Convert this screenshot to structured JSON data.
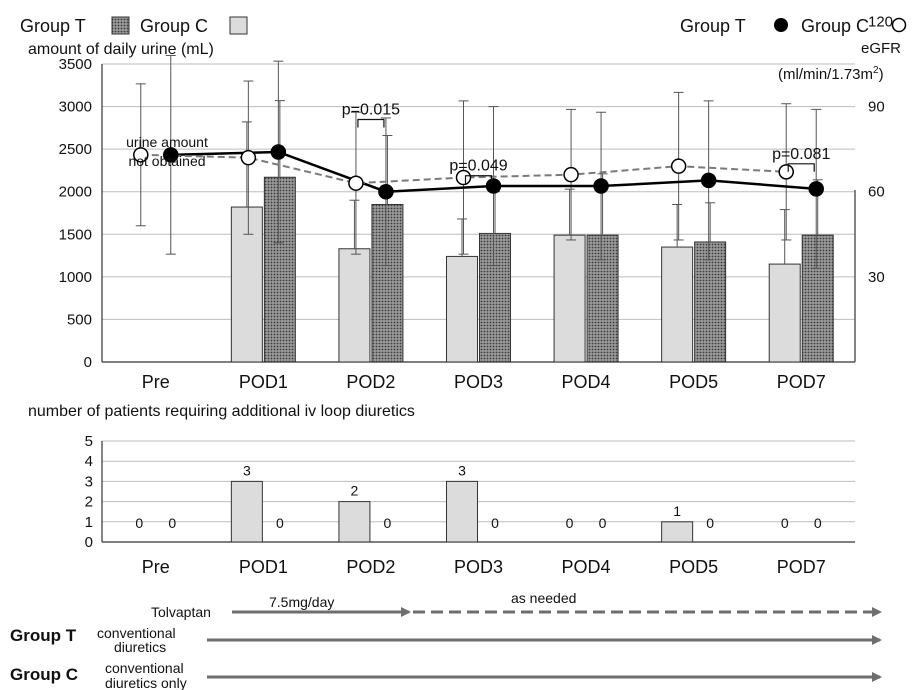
{
  "legend_bars": {
    "group_t": "Group  T",
    "group_c": "Group C"
  },
  "legend_points": {
    "group_t": "Group  T",
    "group_c": "Group C"
  },
  "chart_data": [
    {
      "type": "bar",
      "ylabel": "amount of daily urine (mL)",
      "ylim": [
        0,
        3500
      ],
      "yticks": [
        "0",
        "500",
        "1000",
        "1500",
        "2000",
        "2500",
        "3000",
        "3500"
      ],
      "categories": [
        "Pre",
        "POD1",
        "POD2",
        "POD3",
        "POD4",
        "POD5",
        "POD7"
      ],
      "series": [
        {
          "name": "Group C",
          "values": [
            null,
            1820,
            1330,
            1240,
            1490,
            1350,
            1150
          ],
          "error": [
            null,
            1000,
            570,
            440,
            540,
            500,
            640
          ]
        },
        {
          "name": "Group T",
          "values": [
            null,
            2170,
            1850,
            1510,
            1490,
            1410,
            1490
          ],
          "error": [
            null,
            900,
            810,
            490,
            720,
            460,
            650
          ]
        }
      ],
      "note_lines": [
        "urine amount",
        "not obtained"
      ],
      "pvalues": [
        {
          "category": "POD2",
          "label": "p=0.015"
        },
        {
          "category": "POD3",
          "label": "p=0.049"
        },
        {
          "category": "POD7",
          "label": "p=0.081"
        }
      ],
      "grid": "horizontal"
    },
    {
      "type": "line",
      "ylabel_lines": [
        "eGFR",
        "(ml/min/1.73m",
        "2",
        ")"
      ],
      "ylim": [
        0,
        105
      ],
      "yticks": [
        "30",
        "60",
        "90",
        "120"
      ],
      "categories": [
        "Pre",
        "POD1",
        "POD2",
        "POD3",
        "POD4",
        "POD5",
        "POD7"
      ],
      "series": [
        {
          "name": "Group T",
          "values": [
            73,
            74,
            60,
            62,
            62,
            64,
            61
          ],
          "error": [
            35,
            32,
            26,
            28,
            26,
            28,
            28
          ]
        },
        {
          "name": "Group C",
          "values": [
            73,
            72,
            63,
            65,
            66,
            69,
            67
          ],
          "error": [
            25,
            27,
            25,
            27,
            23,
            26,
            24
          ]
        }
      ]
    },
    {
      "type": "bar",
      "title": "number of patients requiring additional iv loop diuretics",
      "ylim": [
        0,
        5
      ],
      "yticks": [
        "0",
        "1",
        "2",
        "3",
        "4",
        "5"
      ],
      "categories": [
        "Pre",
        "POD1",
        "POD2",
        "POD3",
        "POD4",
        "POD5",
        "POD7"
      ],
      "series": [
        {
          "name": "Group C",
          "values": [
            0,
            3,
            2,
            3,
            0,
            1,
            0
          ]
        },
        {
          "name": "Group T",
          "values": [
            0,
            0,
            0,
            0,
            0,
            0,
            0
          ]
        }
      ],
      "grid": "horizontal"
    }
  ],
  "timeline": {
    "group_t_label": "Group T",
    "group_c_label": "Group C",
    "tolvaptan_label": "Tolvaptan",
    "dose_label": "7.5mg/day",
    "as_needed_label": "as needed",
    "conventional_t": [
      "conventional",
      "diuretics"
    ],
    "conventional_c": [
      "conventional",
      "diuretics only"
    ]
  },
  "colors": {
    "group_c_bar": "#dcdcdc",
    "group_t_bar": "#8a8a8a",
    "axis": "#333333",
    "grid": "#bdbdbd",
    "arrow": "#6e6e6e",
    "line_t": "#000000",
    "line_c": "#7a7a7a"
  }
}
